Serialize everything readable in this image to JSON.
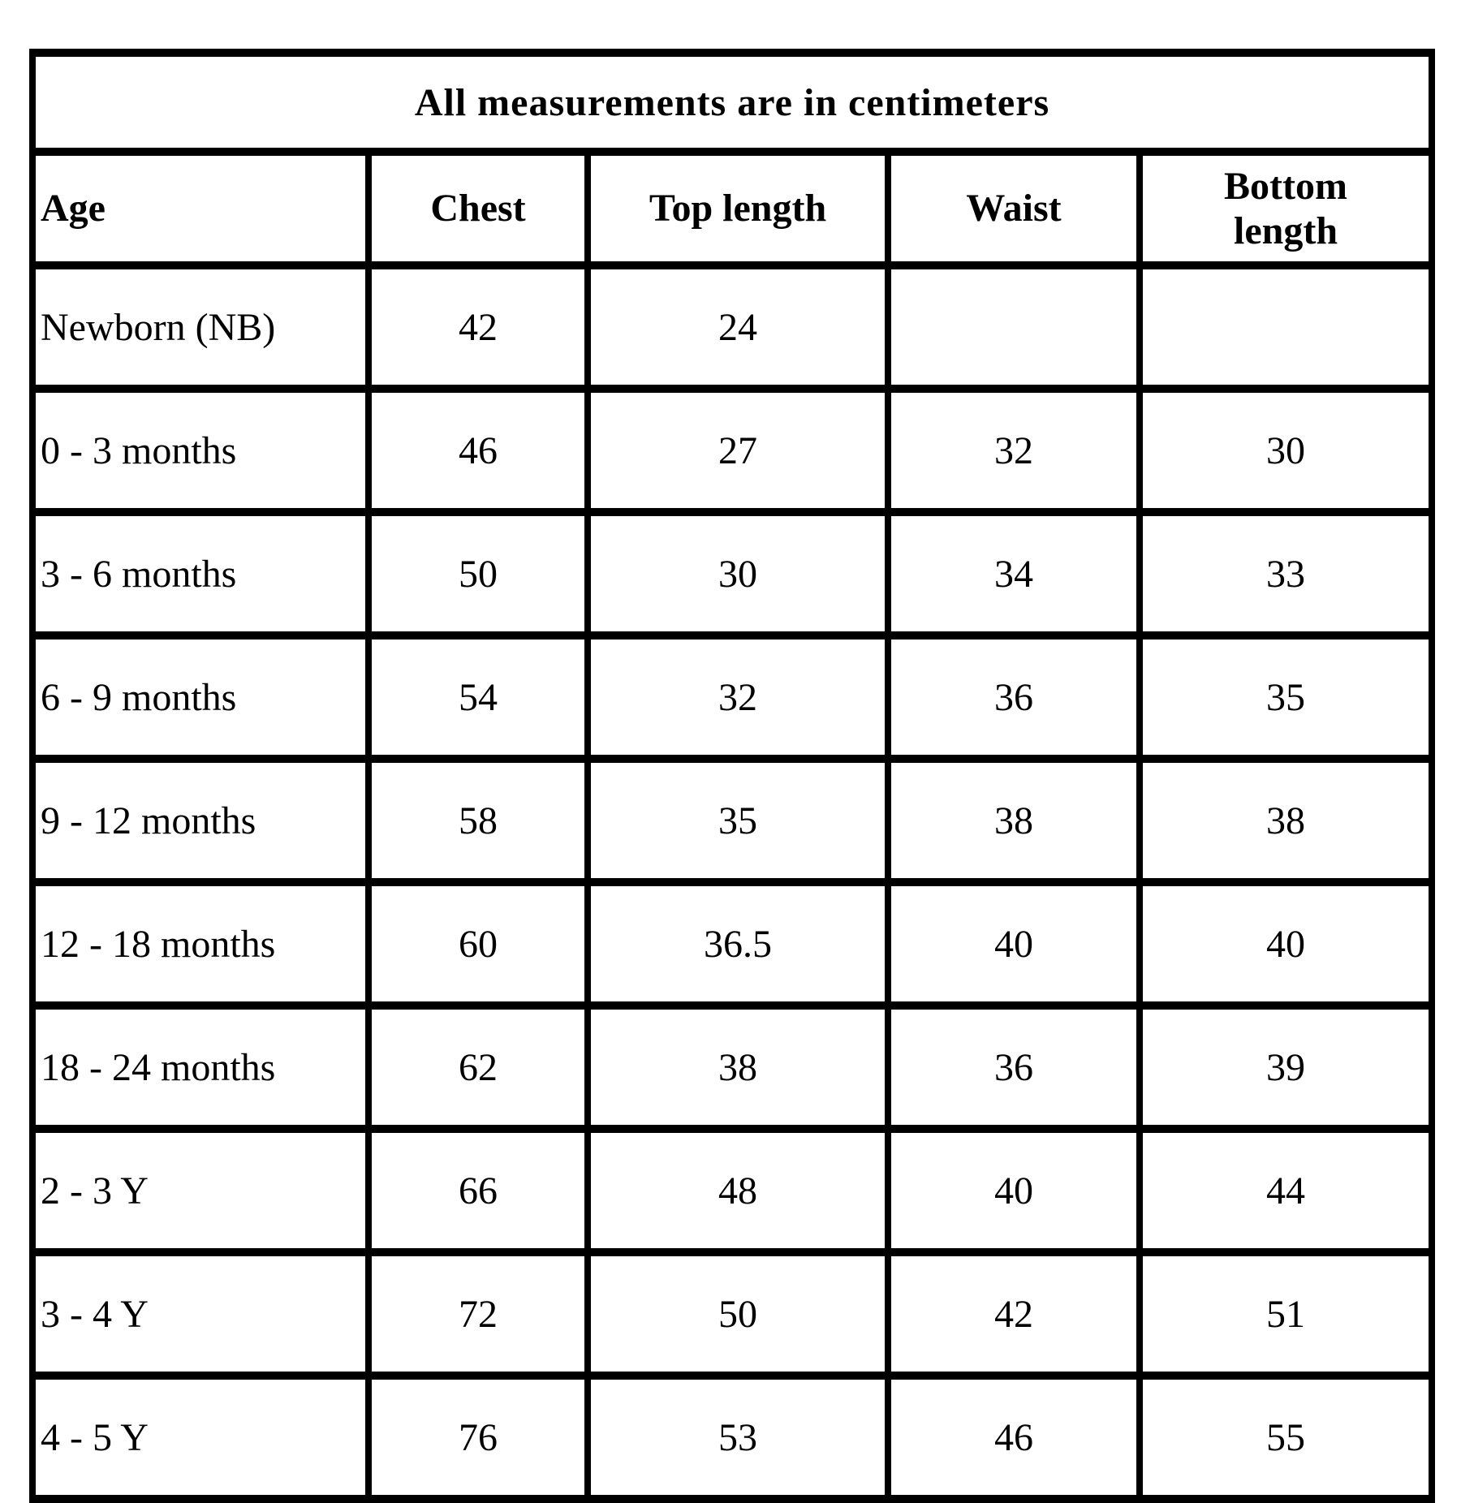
{
  "colors": {
    "background": "#ffffff",
    "border": "#000000",
    "text": "#000000"
  },
  "chart_data": {
    "type": "table",
    "title": "All measurements are in centimeters",
    "columns": [
      "Age",
      "Chest",
      "Top length",
      "Waist",
      "Bottom\nlength"
    ],
    "rows": [
      [
        "Newborn (NB)",
        "42",
        "24",
        "",
        ""
      ],
      [
        "0 - 3 months",
        "46",
        "27",
        "32",
        "30"
      ],
      [
        "3 - 6 months",
        "50",
        "30",
        "34",
        "33"
      ],
      [
        "6 - 9 months",
        "54",
        "32",
        "36",
        "35"
      ],
      [
        "9 - 12 months",
        "58",
        "35",
        "38",
        "38"
      ],
      [
        "12 - 18 months",
        "60",
        "36.5",
        "40",
        "40"
      ],
      [
        "18 - 24 months",
        "62",
        "38",
        "36",
        "39"
      ],
      [
        "2 - 3 Y",
        "66",
        "48",
        "40",
        "44"
      ],
      [
        "3 - 4 Y",
        "72",
        "50",
        "42",
        "51"
      ],
      [
        "4 - 5 Y",
        "76",
        "53",
        "46",
        "55"
      ]
    ]
  }
}
